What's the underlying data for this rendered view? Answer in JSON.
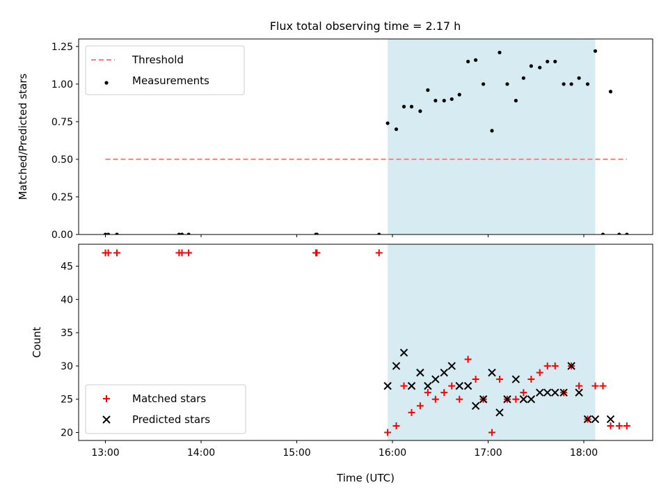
{
  "title": "Flux total observing time = 2.17 h",
  "colors": {
    "threshold": "#ff7f7f",
    "measurement": "#000000",
    "matched": "#ff0000",
    "predicted": "#000000",
    "shade": "#add8e6"
  },
  "chart_data": [
    {
      "type": "scatter",
      "panel": "top",
      "ylabel": "Matched/Predicted stars",
      "ylim": [
        0.0,
        1.3
      ],
      "yticks": [
        "0.00",
        "0.25",
        "0.50",
        "0.75",
        "1.00",
        "1.25"
      ],
      "xlim_hours": [
        12.72,
        18.72
      ],
      "legend_position": "top-left",
      "shaded_interval_hours": [
        15.95,
        18.12
      ],
      "threshold": {
        "name": "Threshold",
        "value": 0.5,
        "x_range_hours": [
          13.0,
          18.45
        ]
      },
      "series": [
        {
          "name": "Measurements",
          "marker": "dot",
          "x_hours": [
            13.0,
            13.03,
            13.12,
            13.77,
            13.8,
            13.87,
            15.2,
            15.21,
            15.86,
            15.95,
            16.04,
            16.12,
            16.2,
            16.29,
            16.37,
            16.45,
            16.54,
            16.62,
            16.7,
            16.79,
            16.87,
            16.95,
            17.04,
            17.12,
            17.2,
            17.29,
            17.37,
            17.45,
            17.54,
            17.62,
            17.7,
            17.79,
            17.87,
            17.95,
            18.04,
            18.12,
            18.2,
            18.28,
            18.37,
            18.45
          ],
          "y": [
            0.0,
            0.0,
            0.0,
            0.0,
            0.0,
            0.0,
            0.0,
            0.0,
            0.0,
            0.74,
            0.7,
            0.85,
            0.85,
            0.82,
            0.96,
            0.89,
            0.89,
            0.9,
            0.93,
            1.15,
            1.16,
            1.0,
            0.69,
            1.21,
            1.0,
            0.89,
            1.04,
            1.12,
            1.11,
            1.15,
            1.15,
            1.0,
            1.0,
            1.04,
            1.0,
            1.22,
            0.0,
            0.95,
            0.0,
            0.0
          ]
        }
      ]
    },
    {
      "type": "scatter",
      "panel": "bottom",
      "xlabel": "Time (UTC)",
      "ylabel": "Count",
      "ylim": [
        18.8,
        48.3
      ],
      "yticks": [
        "20",
        "25",
        "30",
        "35",
        "40",
        "45"
      ],
      "xlim_hours": [
        12.72,
        18.72
      ],
      "xticks": [
        "13:00",
        "14:00",
        "15:00",
        "16:00",
        "17:00",
        "18:00"
      ],
      "legend_position": "bottom-left",
      "shaded_interval_hours": [
        15.95,
        18.12
      ],
      "series": [
        {
          "name": "Matched stars",
          "marker": "plus",
          "x_hours": [
            13.0,
            13.03,
            13.12,
            13.77,
            13.8,
            13.87,
            15.2,
            15.21,
            15.86,
            15.95,
            16.04,
            16.12,
            16.2,
            16.29,
            16.37,
            16.45,
            16.54,
            16.62,
            16.7,
            16.79,
            16.87,
            16.95,
            17.04,
            17.12,
            17.2,
            17.29,
            17.37,
            17.45,
            17.54,
            17.62,
            17.7,
            17.79,
            17.87,
            17.95,
            18.04,
            18.12,
            18.2,
            18.28,
            18.37,
            18.45
          ],
          "y": [
            47,
            47,
            47,
            47,
            47,
            47,
            47,
            47,
            47,
            20,
            21,
            27,
            23,
            24,
            26,
            25,
            26,
            27,
            25,
            31,
            28,
            25,
            20,
            28,
            25,
            25,
            26,
            28,
            29,
            30,
            30,
            26,
            30,
            27,
            22,
            27,
            27,
            21,
            21,
            21
          ]
        },
        {
          "name": "Predicted stars",
          "marker": "x",
          "x_hours": [
            15.95,
            16.04,
            16.12,
            16.2,
            16.29,
            16.37,
            16.45,
            16.54,
            16.62,
            16.7,
            16.79,
            16.87,
            16.95,
            17.04,
            17.12,
            17.2,
            17.29,
            17.37,
            17.45,
            17.54,
            17.62,
            17.7,
            17.79,
            17.87,
            17.95,
            18.04,
            18.12,
            18.28
          ],
          "y": [
            27,
            30,
            32,
            27,
            29,
            27,
            28,
            29,
            30,
            27,
            27,
            24,
            25,
            29,
            23,
            25,
            28,
            25,
            25,
            26,
            26,
            26,
            26,
            30,
            26,
            22,
            22,
            22
          ]
        }
      ]
    }
  ]
}
